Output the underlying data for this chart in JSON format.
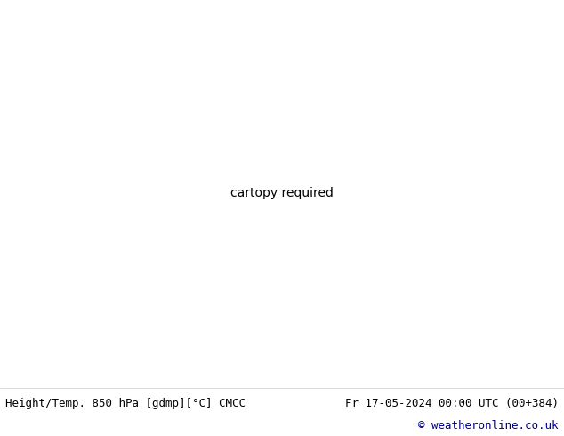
{
  "title_left": "Height/Temp. 850 hPa [gdmp][°C] CMCC",
  "title_right": "Fr 17-05-2024 00:00 UTC (00+384)",
  "copyright": "© weatheronline.co.uk",
  "fig_width": 6.34,
  "fig_height": 4.9,
  "dpi": 100,
  "bg_color": "#ffffff",
  "ocean_color": "#d8d8d8",
  "land_color": "#c8eaaa",
  "border_line_color": "#888888",
  "bottom_text_color": "#000000",
  "copyright_color": "#00008b",
  "font_size_bottom": 9,
  "font_size_copyright": 9,
  "map_extent": [
    -175,
    -50,
    15,
    80
  ],
  "contour_label_fontsize": 7
}
